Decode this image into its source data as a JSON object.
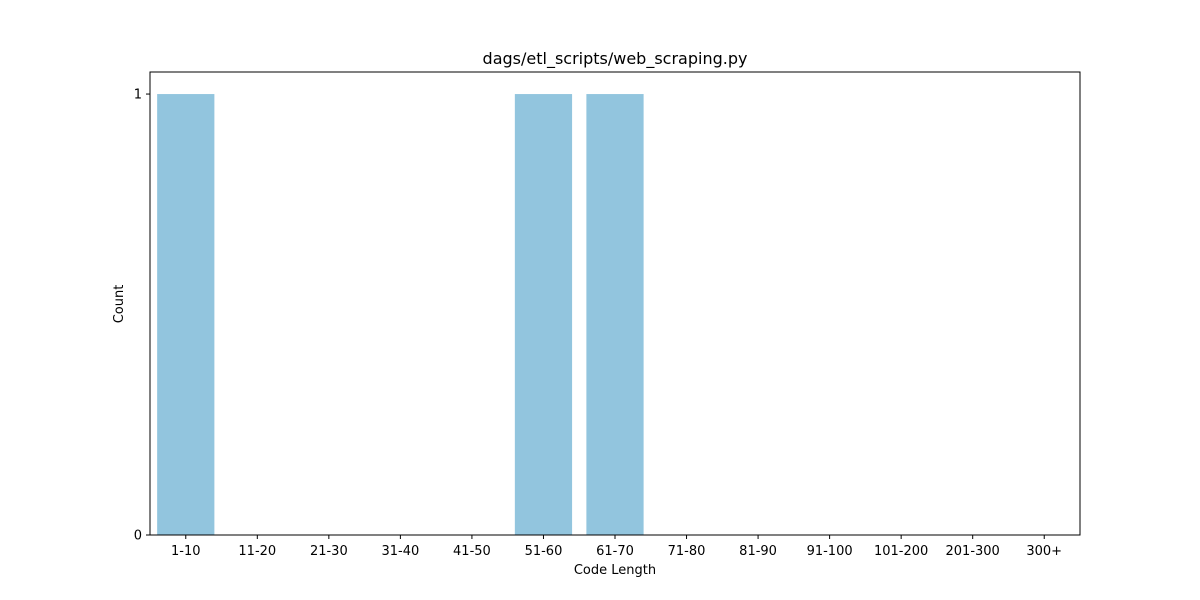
{
  "chart_data": {
    "type": "bar",
    "title": "dags/etl_scripts/web_scraping.py",
    "xlabel": "Code Length",
    "ylabel": "Count",
    "categories": [
      "1-10",
      "11-20",
      "21-30",
      "31-40",
      "41-50",
      "51-60",
      "61-70",
      "71-80",
      "81-90",
      "91-100",
      "101-200",
      "201-300",
      "300+"
    ],
    "values": [
      1,
      0,
      0,
      0,
      0,
      1,
      1,
      0,
      0,
      0,
      0,
      0,
      0
    ],
    "ylim": [
      0,
      1.05
    ],
    "yticks": [
      0,
      1
    ],
    "grid": false,
    "legend": "none",
    "bar_color": "#92c5de"
  }
}
